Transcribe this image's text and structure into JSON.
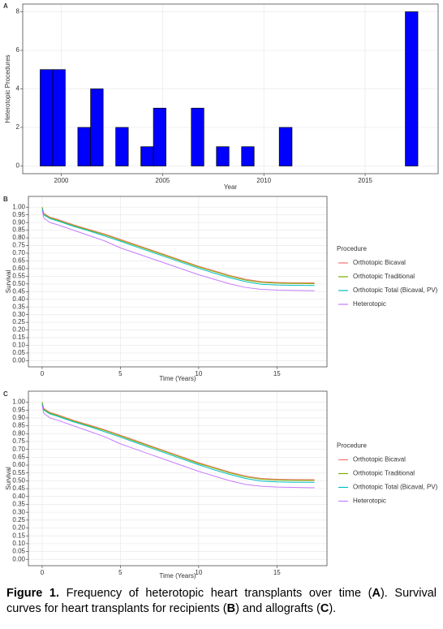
{
  "chart_data": [
    {
      "type": "histogram",
      "tag": "A",
      "x_label": "Year",
      "y_label": "Heterotopic Procedures",
      "bins": [
        1998.96,
        1999.58,
        2000.2,
        2000.82,
        2001.45,
        2002.07,
        2002.69,
        2003.31,
        2003.93,
        2004.55,
        2005.17,
        2005.79,
        2006.42,
        2007.04,
        2007.66,
        2008.28,
        2008.9,
        2009.52,
        2010.14,
        2010.76,
        2011.39,
        2012.01,
        2012.63,
        2013.25,
        2013.87,
        2014.49,
        2015.11,
        2015.73,
        2016.36,
        2016.98,
        2017.6
      ],
      "values": [
        5,
        5,
        0,
        2,
        4,
        0,
        2,
        0,
        1,
        3,
        0,
        0,
        3,
        0,
        1,
        0,
        1,
        0,
        0,
        2,
        0,
        0,
        0,
        0,
        0,
        0,
        0,
        0,
        0,
        8
      ],
      "color": "#0000ff",
      "edgecolor": "#000000",
      "xlim": [
        1998.1,
        2018.6
      ],
      "xticks": [
        2000,
        2005,
        2010,
        2015
      ],
      "ylim": [
        -0.4,
        8.4
      ],
      "yticks": [
        0,
        2,
        4,
        6,
        8
      ],
      "grid": true
    },
    {
      "type": "line",
      "tag": "B",
      "x_label": "Time (Years)",
      "y_label": "Survival",
      "legend_title": "Procedure",
      "legend": "right",
      "x": [
        0,
        0.1,
        0.5,
        1,
        2,
        3,
        4,
        5,
        6,
        7,
        8,
        9,
        10,
        11,
        12,
        13,
        14,
        15,
        16,
        17.4
      ],
      "series": [
        {
          "name": "Orthotopic Bicaval",
          "color": "#F8766D",
          "values": [
            1.0,
            0.96,
            0.935,
            0.92,
            0.885,
            0.855,
            0.825,
            0.79,
            0.755,
            0.72,
            0.685,
            0.65,
            0.615,
            0.585,
            0.555,
            0.53,
            0.515,
            0.51,
            0.508,
            0.507
          ]
        },
        {
          "name": "Orthotopic Traditional",
          "color": "#7CAE00",
          "values": [
            1.0,
            0.955,
            0.93,
            0.915,
            0.88,
            0.85,
            0.82,
            0.785,
            0.75,
            0.715,
            0.68,
            0.645,
            0.61,
            0.58,
            0.55,
            0.525,
            0.51,
            0.505,
            0.503,
            0.502
          ]
        },
        {
          "name": "Orthotopic Total (Bicaval, PV)",
          "color": "#00BFC4",
          "values": [
            0.99,
            0.95,
            0.925,
            0.91,
            0.875,
            0.845,
            0.812,
            0.778,
            0.742,
            0.707,
            0.672,
            0.637,
            0.602,
            0.57,
            0.54,
            0.515,
            0.498,
            0.493,
            0.491,
            0.49
          ]
        },
        {
          "name": "Heterotopic",
          "color": "#C77CFF",
          "values": [
            0.98,
            0.93,
            0.9,
            0.885,
            0.85,
            0.815,
            0.78,
            0.735,
            0.7,
            0.665,
            0.63,
            0.595,
            0.56,
            0.53,
            0.5,
            0.477,
            0.465,
            0.46,
            0.458,
            0.456
          ]
        }
      ],
      "xlim": [
        -0.88,
        18.2
      ],
      "xticks": [
        0,
        5,
        10,
        15
      ],
      "ylim": [
        -0.04,
        1.07
      ],
      "yticks": [
        {
          "value": 0,
          "label": "0.00"
        },
        {
          "value": 0.05,
          "label": "0.05"
        },
        {
          "value": 0.1,
          "label": "0.10"
        },
        {
          "value": 0.15,
          "label": "0.15"
        },
        {
          "value": 0.2,
          "label": "0.20"
        },
        {
          "value": 0.25,
          "label": "0.25"
        },
        {
          "value": 0.3,
          "label": "0.30"
        },
        {
          "value": 0.35,
          "label": "0.35"
        },
        {
          "value": 0.4,
          "label": "0.40"
        },
        {
          "value": 0.45,
          "label": "0.45"
        },
        {
          "value": 0.5,
          "label": "0.50"
        },
        {
          "value": 0.55,
          "label": "0.55"
        },
        {
          "value": 0.6,
          "label": "0.60"
        },
        {
          "value": 0.65,
          "label": "0.65"
        },
        {
          "value": 0.7,
          "label": "0.70"
        },
        {
          "value": 0.75,
          "label": "0.75"
        },
        {
          "value": 0.8,
          "label": "0.80"
        },
        {
          "value": 0.85,
          "label": "0.85"
        },
        {
          "value": 0.9,
          "label": "0.90"
        },
        {
          "value": 0.95,
          "label": "0.95"
        },
        {
          "value": 1,
          "label": "1.00"
        }
      ],
      "grid": true
    },
    {
      "type": "line",
      "tag": "C",
      "x_label": "Time (Years)",
      "y_label": "Survival",
      "legend_title": "Procedure",
      "legend": "right",
      "x": [
        0,
        0.1,
        0.5,
        1,
        2,
        3,
        4,
        5,
        6,
        7,
        8,
        9,
        10,
        11,
        12,
        13,
        14,
        15,
        16,
        17.4
      ],
      "series": [
        {
          "name": "Orthotopic Bicaval",
          "color": "#F8766D",
          "values": [
            1.0,
            0.96,
            0.935,
            0.92,
            0.885,
            0.855,
            0.825,
            0.79,
            0.755,
            0.72,
            0.685,
            0.65,
            0.615,
            0.585,
            0.555,
            0.53,
            0.515,
            0.51,
            0.508,
            0.507
          ]
        },
        {
          "name": "Orthotopic Traditional",
          "color": "#7CAE00",
          "values": [
            1.0,
            0.955,
            0.93,
            0.915,
            0.88,
            0.85,
            0.82,
            0.785,
            0.75,
            0.715,
            0.68,
            0.645,
            0.61,
            0.58,
            0.55,
            0.525,
            0.51,
            0.505,
            0.503,
            0.502
          ]
        },
        {
          "name": "Orthotopic Total (Bicaval, PV)",
          "color": "#00BFC4",
          "values": [
            0.99,
            0.95,
            0.925,
            0.91,
            0.875,
            0.845,
            0.812,
            0.778,
            0.742,
            0.707,
            0.672,
            0.637,
            0.602,
            0.57,
            0.54,
            0.515,
            0.498,
            0.493,
            0.491,
            0.49
          ]
        },
        {
          "name": "Heterotopic",
          "color": "#C77CFF",
          "values": [
            0.98,
            0.93,
            0.9,
            0.885,
            0.85,
            0.815,
            0.78,
            0.735,
            0.7,
            0.665,
            0.63,
            0.595,
            0.56,
            0.53,
            0.5,
            0.477,
            0.465,
            0.46,
            0.458,
            0.456
          ]
        }
      ],
      "xlim": [
        -0.88,
        18.2
      ],
      "xticks": [
        0,
        5,
        10,
        15
      ],
      "ylim": [
        -0.04,
        1.07
      ],
      "yticks": [
        {
          "value": 0,
          "label": "0.00"
        },
        {
          "value": 0.05,
          "label": "0.05"
        },
        {
          "value": 0.1,
          "label": "0.10"
        },
        {
          "value": 0.15,
          "label": "0.15"
        },
        {
          "value": 0.2,
          "label": "0.20"
        },
        {
          "value": 0.25,
          "label": "0.25"
        },
        {
          "value": 0.3,
          "label": "0.30"
        },
        {
          "value": 0.35,
          "label": "0.35"
        },
        {
          "value": 0.4,
          "label": "0.40"
        },
        {
          "value": 0.45,
          "label": "0.45"
        },
        {
          "value": 0.5,
          "label": "0.50"
        },
        {
          "value": 0.55,
          "label": "0.55"
        },
        {
          "value": 0.6,
          "label": "0.60"
        },
        {
          "value": 0.65,
          "label": "0.65"
        },
        {
          "value": 0.7,
          "label": "0.70"
        },
        {
          "value": 0.75,
          "label": "0.75"
        },
        {
          "value": 0.8,
          "label": "0.80"
        },
        {
          "value": 0.85,
          "label": "0.85"
        },
        {
          "value": 0.9,
          "label": "0.90"
        },
        {
          "value": 0.95,
          "label": "0.95"
        },
        {
          "value": 1,
          "label": "1.00"
        }
      ],
      "grid": true
    }
  ],
  "caption": [
    {
      "text": "Figure 1.",
      "bold": true
    },
    {
      "text": " Frequency of heterotopic heart transplants over time (",
      "bold": false
    },
    {
      "text": "A",
      "bold": true
    },
    {
      "text": "). Survival curves for heart transplants for recipients (",
      "bold": false
    },
    {
      "text": "B",
      "bold": true
    },
    {
      "text": ") and allografts (",
      "bold": false
    },
    {
      "text": "C",
      "bold": true
    },
    {
      "text": ").",
      "bold": false
    }
  ]
}
